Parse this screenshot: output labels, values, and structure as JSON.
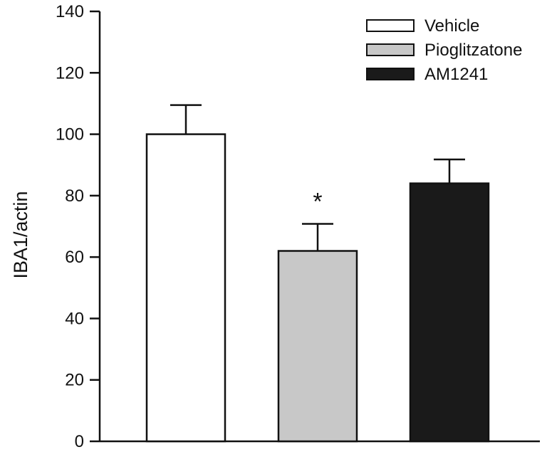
{
  "chart_data": {
    "type": "bar",
    "ylabel": "IBA1/actin",
    "xlabel": "",
    "ylim": [
      0,
      140
    ],
    "yticks": [
      0,
      20,
      40,
      60,
      80,
      100,
      120,
      140
    ],
    "grid": false,
    "legend_position": "top-right",
    "series": [
      {
        "name": "Vehicle",
        "value": 100,
        "error": 9.5,
        "color": "#ffffff"
      },
      {
        "name": "Pioglitzatone",
        "value": 62,
        "error": 8.8,
        "color": "#c8c8c8"
      },
      {
        "name": "AM1241",
        "value": 84,
        "error": 7.8,
        "color": "#1a1a1a"
      }
    ],
    "annotations": [
      {
        "series": "Pioglitzatone",
        "text": "*"
      }
    ]
  }
}
